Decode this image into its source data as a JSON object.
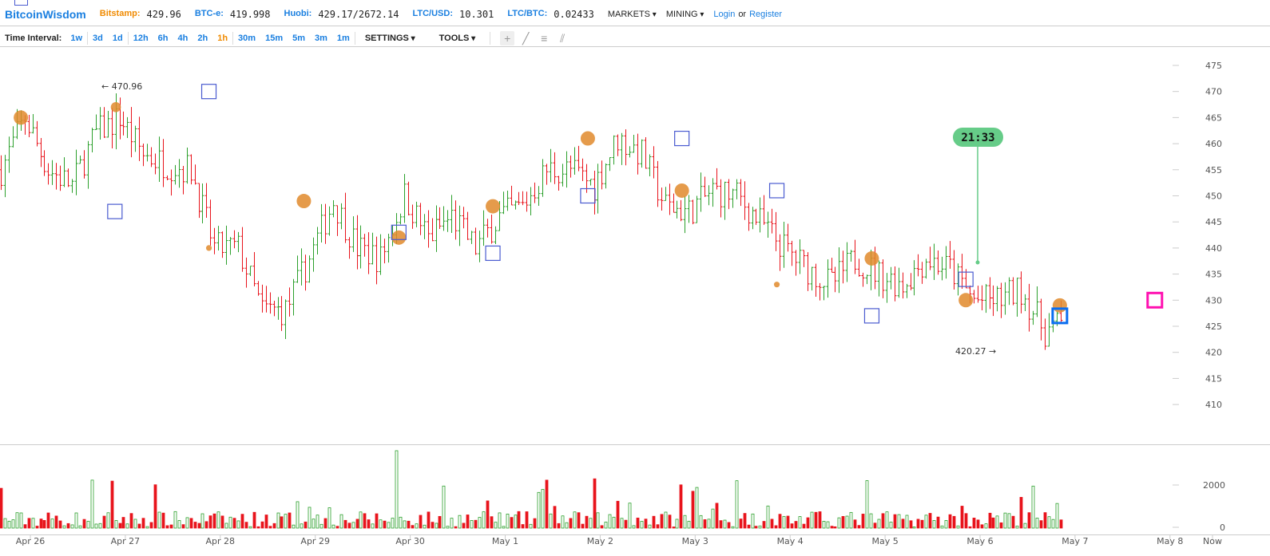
{
  "header": {
    "logo": "BitcoinWisdom",
    "tickers": [
      {
        "label": "Bitstamp:",
        "value": "429.96",
        "highlight": true
      },
      {
        "label": "BTC-e:",
        "value": "419.998"
      },
      {
        "label": "Huobi:",
        "value": "429.17/2672.14"
      },
      {
        "label": "LTC/USD:",
        "value": "10.301"
      },
      {
        "label": "LTC/BTC:",
        "value": "0.02433"
      }
    ],
    "menus": [
      "MARKETS",
      "MINING"
    ],
    "login": "Login",
    "or": "or",
    "register": "Register"
  },
  "toolbar": {
    "time_interval_label": "Time Interval:",
    "intervals": [
      [
        "1w"
      ],
      [
        "3d",
        "1d"
      ],
      [
        "12h",
        "6h",
        "4h",
        "2h",
        "1h"
      ],
      [
        "30m",
        "15m",
        "5m",
        "3m",
        "1m"
      ]
    ],
    "active_interval": "1h",
    "settings": "SETTINGS",
    "tools": "TOOLS",
    "drawing_tools": [
      "crosshair-icon",
      "line-icon",
      "horizontal-lines-icon",
      "fan-icon"
    ]
  },
  "chart_data": {
    "type": "ohlc",
    "interval": "1h",
    "x_ticks": [
      "Apr 26",
      "Apr 27",
      "Apr 28",
      "Apr 29",
      "Apr 30",
      "May 1",
      "May 2",
      "May 3",
      "May 4",
      "May 5",
      "May 6",
      "May 7",
      "May 8",
      "Now"
    ],
    "price_ticks": [
      475,
      470,
      465,
      460,
      455,
      450,
      445,
      440,
      435,
      430,
      425,
      420,
      415,
      410
    ],
    "price_ylim": [
      405,
      477
    ],
    "volume_ticks": [
      0,
      2000
    ],
    "volume_ylim": [
      0,
      3700
    ],
    "approx_closes_6h": [
      455,
      465,
      455,
      452,
      462,
      465,
      458,
      456,
      455,
      440,
      440,
      428,
      428,
      438,
      449,
      440,
      438,
      450,
      442,
      446,
      440,
      446,
      448,
      455,
      455,
      452,
      461,
      458,
      448,
      447,
      451,
      450,
      445,
      440,
      436,
      433,
      438,
      435,
      433,
      438,
      436,
      430,
      430,
      432,
      424,
      426,
      431,
      431,
      429
    ],
    "high_label": "← 470.96",
    "low_label": "420.27 →",
    "countdown": "21:33",
    "colors": {
      "up": "#2ca02c",
      "down": "#e8141c",
      "trade_circle": "#e08a2c",
      "trade_square": "#4a5bd0",
      "current_square": "#0a6ef0",
      "target_square": "#ff10b0",
      "countdown": "#66cc88"
    },
    "markers": {
      "squares": [
        [
          1.88,
          470
        ],
        [
          0.89,
          447
        ],
        [
          3.88,
          443
        ],
        [
          4.87,
          439
        ],
        [
          5.87,
          450
        ],
        [
          6.86,
          461
        ],
        [
          7.86,
          451
        ],
        [
          8.86,
          427
        ],
        [
          9.85,
          434
        ]
      ],
      "current_square": [
        10.84,
        427
      ],
      "target_square": [
        11.84,
        430
      ],
      "circles": [
        [
          -0.1,
          465,
          1
        ],
        [
          0.9,
          467,
          0.7
        ],
        [
          1.88,
          440,
          0.4
        ],
        [
          2.88,
          449,
          1
        ],
        [
          3.88,
          442,
          1
        ],
        [
          4.87,
          448,
          1
        ],
        [
          5.87,
          461,
          1
        ],
        [
          6.86,
          451,
          1
        ],
        [
          7.86,
          433,
          0.4
        ],
        [
          8.86,
          438,
          1
        ],
        [
          9.85,
          430,
          1
        ],
        [
          10.84,
          429,
          1
        ]
      ]
    }
  }
}
